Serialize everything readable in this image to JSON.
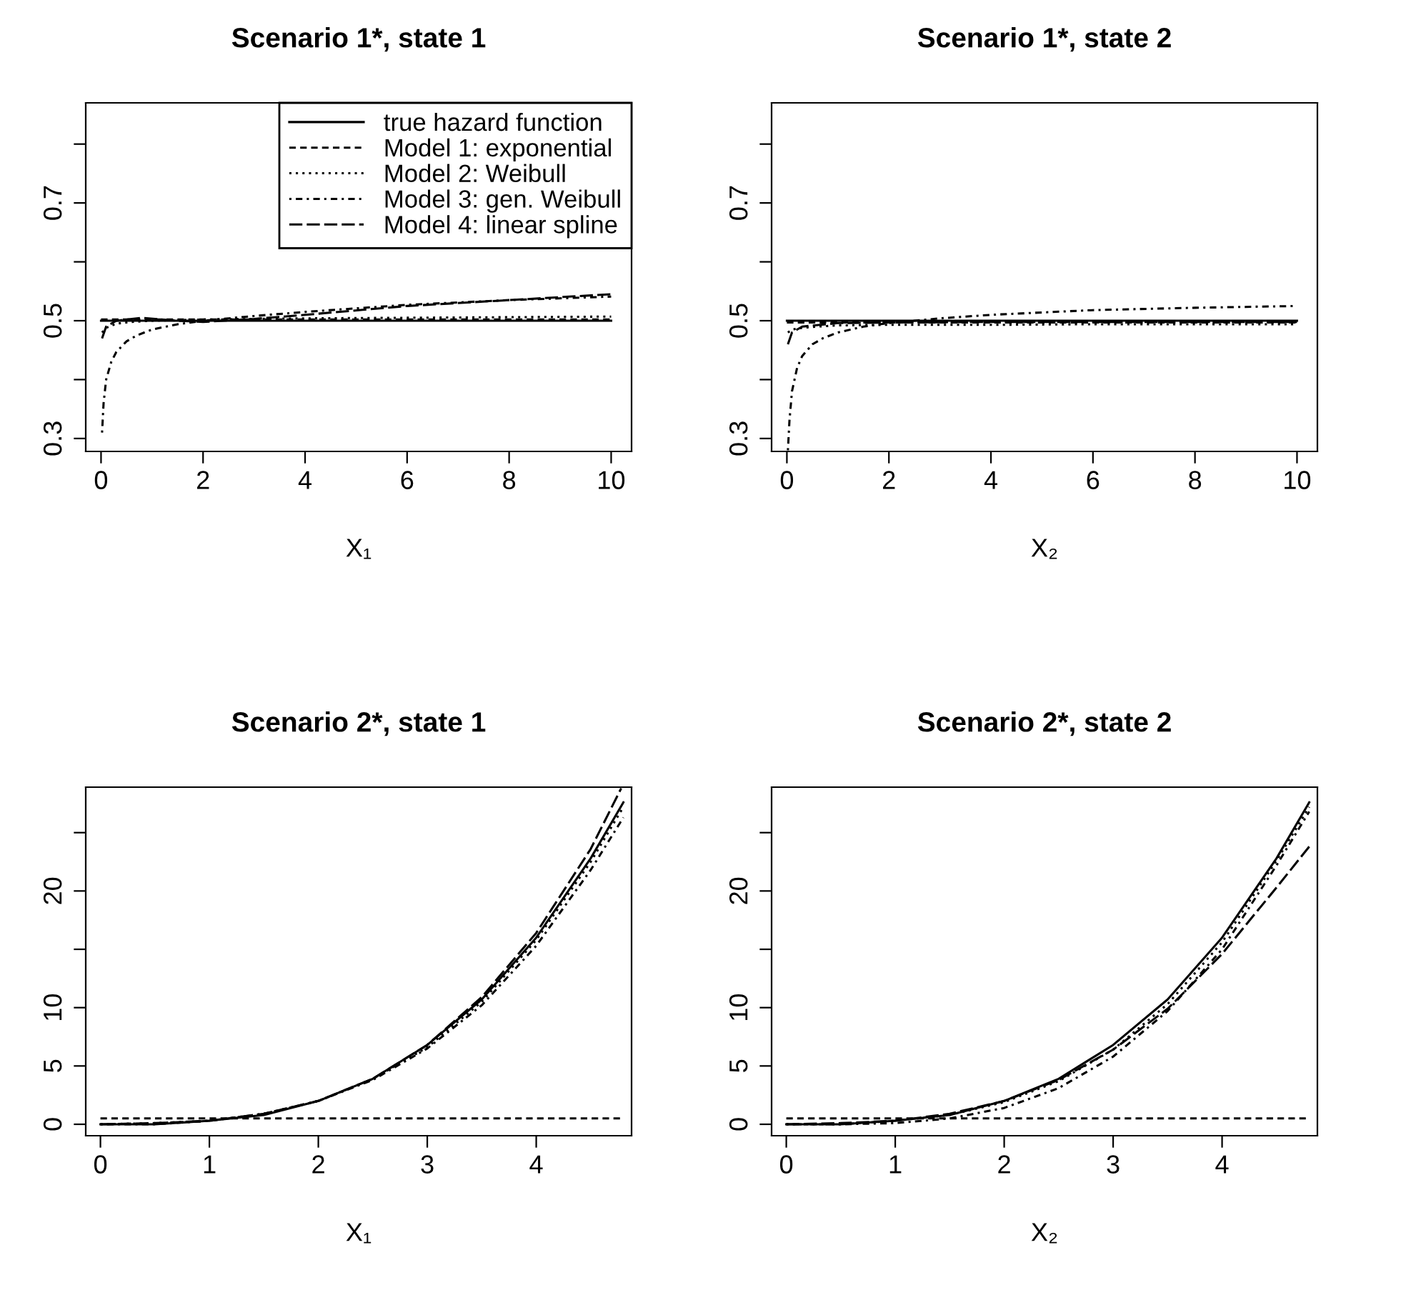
{
  "chart_data": [
    {
      "type": "line",
      "title": "Scenario 1*, state 1",
      "xlabel": "X₁",
      "xlim": [
        -0.3,
        10.4
      ],
      "ylim": [
        0.278,
        0.87
      ],
      "xticks": [
        0,
        2,
        4,
        6,
        8,
        10
      ],
      "yticks": [
        0.3,
        {
          "value": 0.4,
          "label": null
        },
        0.5,
        {
          "value": 0.6,
          "label": null
        },
        0.7,
        {
          "value": 0.8,
          "label": null
        }
      ],
      "grid": false,
      "legend": "top right",
      "series": [
        {
          "name": "true hazard function",
          "color": "#000000",
          "line_style": "solid",
          "x": [
            0,
            10
          ],
          "values": [
            0.5,
            0.5
          ]
        },
        {
          "name": "Model 1: exponential",
          "color": "#000000",
          "line_style": "dashed",
          "x": [
            0,
            10
          ],
          "values": [
            0.502,
            0.502
          ]
        },
        {
          "name": "Model 2: Weibull",
          "color": "#000000",
          "line_style": "dotted",
          "x": [
            0.02,
            0.1,
            0.3,
            0.6,
            1,
            2,
            4,
            6,
            8,
            10
          ],
          "values": [
            0.48,
            0.488,
            0.495,
            0.498,
            0.5,
            0.502,
            0.504,
            0.505,
            0.506,
            0.507
          ]
        },
        {
          "name": "Model 3: gen. Weibull",
          "color": "#000000",
          "line_style": "dashdot",
          "x": [
            0.02,
            0.05,
            0.1,
            0.2,
            0.3,
            0.5,
            0.7,
            1,
            1.5,
            2,
            3,
            4,
            6,
            8,
            10
          ],
          "values": [
            0.31,
            0.36,
            0.4,
            0.43,
            0.447,
            0.465,
            0.475,
            0.485,
            0.494,
            0.5,
            0.508,
            0.515,
            0.527,
            0.535,
            0.541
          ]
        },
        {
          "name": "Model 4: linear spline",
          "color": "#000000",
          "line_style": "longdash",
          "x": [
            0.02,
            0.1,
            0.3,
            0.8,
            1.5,
            2,
            3,
            4,
            6,
            8,
            10
          ],
          "values": [
            0.47,
            0.49,
            0.5,
            0.505,
            0.5,
            0.498,
            0.503,
            0.51,
            0.525,
            0.535,
            0.545
          ]
        }
      ]
    },
    {
      "type": "line",
      "title": "Scenario 1*, state 2",
      "xlabel": "X₂",
      "xlim": [
        -0.3,
        10.4
      ],
      "ylim": [
        0.278,
        0.87
      ],
      "xticks": [
        0,
        2,
        4,
        6,
        8,
        10
      ],
      "yticks": [
        0.3,
        {
          "value": 0.4,
          "label": null
        },
        0.5,
        {
          "value": 0.6,
          "label": null
        },
        0.7,
        {
          "value": 0.8,
          "label": null
        }
      ],
      "grid": false,
      "series": [
        {
          "color": "#000000",
          "line_style": "solid",
          "x": [
            0,
            10
          ],
          "values": [
            0.5,
            0.5
          ]
        },
        {
          "color": "#000000",
          "line_style": "dashed",
          "x": [
            0,
            10
          ],
          "values": [
            0.497,
            0.497
          ]
        },
        {
          "color": "#000000",
          "line_style": "dotted",
          "x": [
            0.02,
            0.1,
            0.3,
            0.6,
            1,
            2,
            4,
            6,
            8,
            10
          ],
          "values": [
            0.48,
            0.485,
            0.488,
            0.49,
            0.492,
            0.493,
            0.493,
            0.494,
            0.494,
            0.494
          ]
        },
        {
          "color": "#000000",
          "line_style": "dashdot",
          "x": [
            0.02,
            0.05,
            0.1,
            0.2,
            0.3,
            0.5,
            0.7,
            1,
            1.5,
            2,
            2.5,
            3,
            4,
            6,
            8,
            10
          ],
          "values": [
            0.28,
            0.33,
            0.38,
            0.42,
            0.44,
            0.46,
            0.47,
            0.48,
            0.49,
            0.496,
            0.5,
            0.504,
            0.51,
            0.518,
            0.522,
            0.525
          ]
        },
        {
          "color": "#000000",
          "line_style": "longdash",
          "x": [
            0.02,
            0.1,
            0.3,
            1,
            2,
            4,
            6,
            8,
            10
          ],
          "values": [
            0.46,
            0.48,
            0.49,
            0.496,
            0.497,
            0.498,
            0.498,
            0.498,
            0.498
          ]
        }
      ]
    },
    {
      "type": "line",
      "title": "Scenario 2*, state 1",
      "xlabel": "X₁",
      "xlim": [
        -0.135,
        4.875
      ],
      "ylim": [
        -0.98,
        28.9
      ],
      "xticks": [
        0,
        1,
        2,
        3,
        4
      ],
      "yticks": [
        0,
        5,
        10,
        {
          "value": 15,
          "label": null
        },
        20,
        {
          "value": 25,
          "label": null
        }
      ],
      "grid": false,
      "series": [
        {
          "color": "#000000",
          "line_style": "solid",
          "x": [
            0,
            0.5,
            1,
            1.5,
            2,
            2.5,
            3,
            3.5,
            4,
            4.5,
            4.8
          ],
          "values": [
            0,
            0,
            0.3,
            0.8,
            2,
            3.9,
            6.8,
            10.7,
            16,
            22.8,
            27.6
          ]
        },
        {
          "color": "#000000",
          "line_style": "dashed",
          "x": [
            0,
            4.8
          ],
          "values": [
            0.5,
            0.5
          ]
        },
        {
          "color": "#000000",
          "line_style": "dotted",
          "x": [
            0,
            0.5,
            1,
            1.5,
            2,
            2.5,
            3,
            3.5,
            4,
            4.5,
            4.8
          ],
          "values": [
            0,
            0.1,
            0.3,
            0.9,
            2,
            3.9,
            6.6,
            10.5,
            15.8,
            22.5,
            27.2
          ]
        },
        {
          "color": "#000000",
          "line_style": "dashdot",
          "x": [
            0,
            0.5,
            1,
            1.5,
            2,
            2.5,
            3,
            3.5,
            4,
            4.5,
            4.8
          ],
          "values": [
            0,
            0,
            0.3,
            0.9,
            2,
            3.8,
            6.5,
            10.2,
            15.3,
            21.8,
            26.3
          ]
        },
        {
          "color": "#000000",
          "line_style": "longdash",
          "x": [
            0,
            0.5,
            1,
            1.5,
            2,
            2.5,
            3,
            3.5,
            4,
            4.5,
            4.78
          ],
          "values": [
            0,
            0.1,
            0.3,
            0.9,
            2,
            3.9,
            6.8,
            10.9,
            16.4,
            23.6,
            28.8
          ]
        }
      ]
    },
    {
      "type": "line",
      "title": "Scenario 2*, state 2",
      "xlabel": "X₂",
      "xlim": [
        -0.135,
        4.875
      ],
      "ylim": [
        -0.98,
        28.9
      ],
      "xticks": [
        0,
        1,
        2,
        3,
        4
      ],
      "yticks": [
        0,
        5,
        10,
        {
          "value": 15,
          "label": null
        },
        20,
        {
          "value": 25,
          "label": null
        }
      ],
      "grid": false,
      "series": [
        {
          "color": "#000000",
          "line_style": "solid",
          "x": [
            0,
            0.5,
            1,
            1.5,
            2,
            2.5,
            3,
            3.5,
            4,
            4.5,
            4.8
          ],
          "values": [
            0,
            0,
            0.3,
            0.8,
            2,
            3.9,
            6.8,
            10.7,
            16,
            22.8,
            27.6
          ]
        },
        {
          "color": "#000000",
          "line_style": "dashed",
          "x": [
            0,
            4.8
          ],
          "values": [
            0.5,
            0.5
          ]
        },
        {
          "color": "#000000",
          "line_style": "dotted",
          "x": [
            0,
            0.5,
            1,
            1.5,
            2,
            2.5,
            3,
            3.5,
            4,
            4.5,
            4.8
          ],
          "values": [
            0,
            0,
            0.3,
            0.8,
            1.9,
            3.7,
            6.4,
            10.3,
            15.6,
            22.6,
            27.2
          ]
        },
        {
          "color": "#000000",
          "line_style": "dashdot",
          "x": [
            0,
            0.5,
            1,
            1.5,
            2,
            2.5,
            3,
            3.5,
            4,
            4.5,
            4.8
          ],
          "values": [
            0,
            0,
            0.1,
            0.5,
            1.4,
            3.1,
            5.8,
            9.7,
            15,
            22.2,
            26.8
          ]
        },
        {
          "color": "#000000",
          "line_style": "longdash",
          "x": [
            0,
            0.5,
            1,
            1.5,
            2,
            2.5,
            3,
            3.5,
            4,
            4.5,
            4.8
          ],
          "values": [
            0,
            0.1,
            0.3,
            0.9,
            2,
            3.8,
            6.4,
            9.9,
            14.6,
            20.3,
            23.8
          ]
        }
      ]
    }
  ]
}
